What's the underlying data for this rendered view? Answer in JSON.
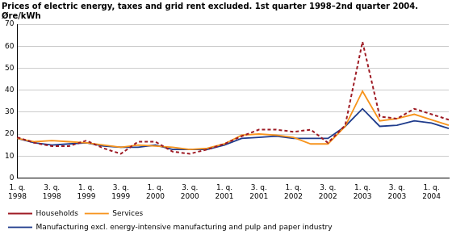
{
  "chart_data": {
    "type": "line",
    "title": [
      "Prices of electric energy, taxes and grid rent excluded. 1st quarter 1998–2nd quarter 2004.",
      "Øre/kWh"
    ],
    "categories": [
      "1. q. 1998",
      null,
      "3. q. 1998",
      null,
      "1. q. 1999",
      null,
      "3. q. 1999",
      null,
      "1. q. 2000",
      null,
      "3. q. 2000",
      null,
      "1. q. 2001",
      null,
      "3. q. 2001",
      null,
      "1. q. 2002",
      null,
      "3. q. 2002",
      null,
      "1. q. 2003",
      null,
      "3. q. 2003",
      null,
      "1. q. 2004",
      null
    ],
    "series": [
      {
        "name": "Households",
        "color": "#9e1b24",
        "line_style": "dashed",
        "values": [
          18.5,
          16,
          14.5,
          14.5,
          17,
          13.5,
          11,
          16.5,
          16.5,
          12,
          11,
          13,
          15.5,
          19,
          22,
          22,
          21,
          22,
          16,
          24,
          62,
          28,
          27,
          31.5,
          29,
          26.5
        ]
      },
      {
        "name": "Services",
        "color": "#f7941d",
        "line_style": "solid",
        "values": [
          18,
          16.5,
          17,
          16.5,
          16,
          15,
          14,
          15,
          14.5,
          14,
          13,
          13.5,
          15.5,
          19.5,
          20,
          19.5,
          18.5,
          15.5,
          15.5,
          23.5,
          39.5,
          26,
          27,
          29,
          26.5,
          24
        ]
      },
      {
        "name": "Manufacturing excl. energy-intensive manufacturing and pulp and paper industry",
        "color": "#1f3c8c",
        "line_style": "solid",
        "values": [
          18,
          16,
          15,
          15.5,
          16,
          14.5,
          14,
          14,
          15,
          13,
          13,
          13,
          15,
          18,
          18.5,
          19,
          18,
          18,
          18,
          23.5,
          31.5,
          23.5,
          24,
          26,
          25,
          22.5
        ]
      }
    ],
    "ylim": [
      0,
      70
    ],
    "yticks": [
      0,
      10,
      20,
      30,
      40,
      50,
      60,
      70
    ],
    "grid": true,
    "legend": "bottom",
    "marker": "none"
  }
}
